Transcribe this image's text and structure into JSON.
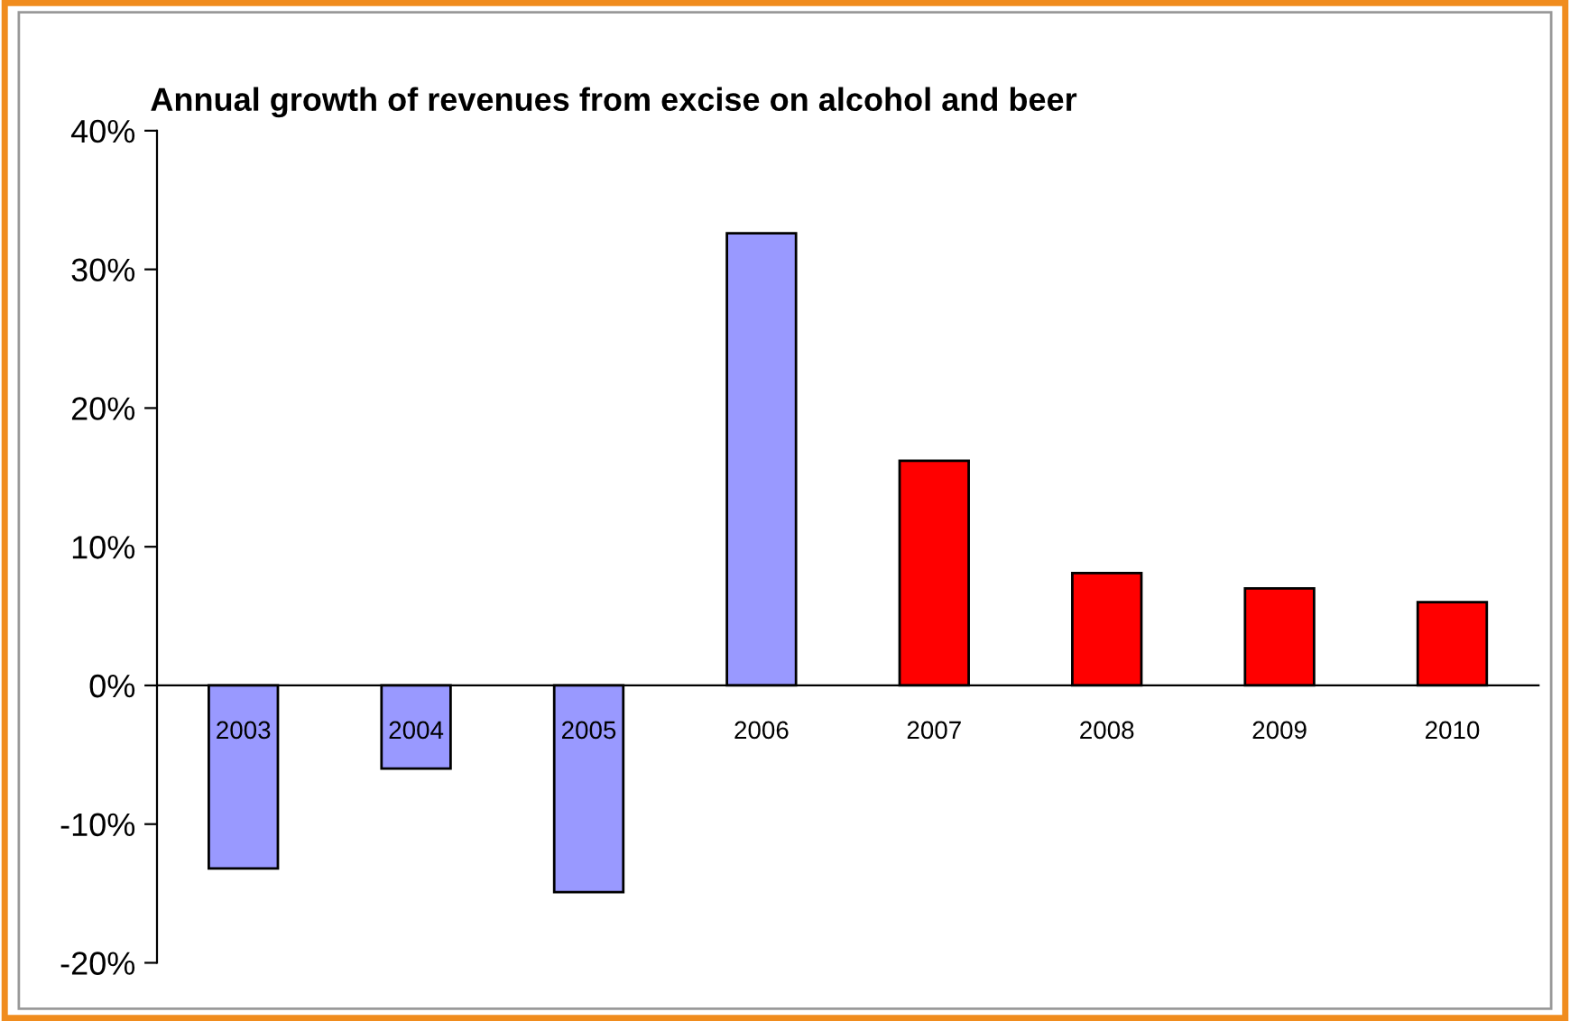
{
  "chart_data": {
    "type": "bar",
    "title": "Annual growth of revenues from excise on alcohol and beer",
    "categories": [
      "2003",
      "2004",
      "2005",
      "2006",
      "2007",
      "2008",
      "2009",
      "2010"
    ],
    "values": [
      -13.2,
      -6,
      -14.9,
      32.6,
      16.2,
      8.1,
      7.0,
      6.0
    ],
    "colors": [
      "#9999ff",
      "#9999ff",
      "#9999ff",
      "#9999ff",
      "#ff0000",
      "#ff0000",
      "#ff0000",
      "#ff0000"
    ],
    "ylim": [
      -20,
      40
    ],
    "yticks": [
      {
        "value": -20,
        "label": "-20%"
      },
      {
        "value": -10,
        "label": "-10%"
      },
      {
        "value": 0,
        "label": "0%"
      },
      {
        "value": 10,
        "label": "10%"
      },
      {
        "value": 20,
        "label": "20%"
      },
      {
        "value": 30,
        "label": "30%"
      },
      {
        "value": 40,
        "label": "40%"
      }
    ],
    "grid": false
  }
}
